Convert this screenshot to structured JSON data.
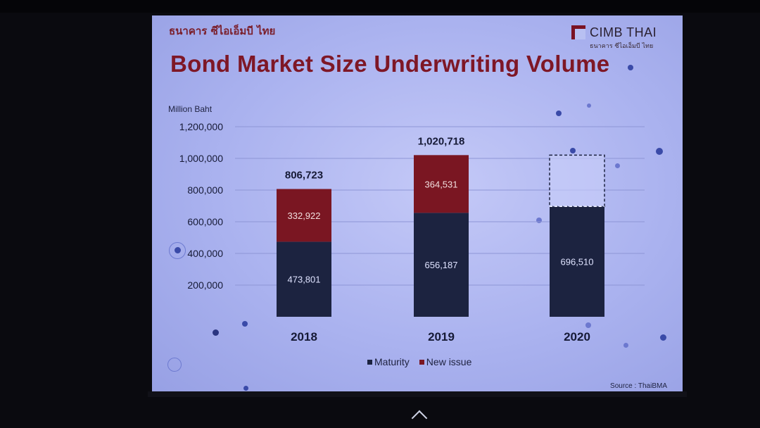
{
  "slide": {
    "bank_name_thai": "ธนาคาร ซีไอเอ็มบี ไทย",
    "logo_text": "CIMB THAI",
    "logo_sub": "ธนาคาร ซีไอเอ็มบี ไทย",
    "title": "Bond Market Size Underwriting Volume",
    "source": "Source : ThaiBMA"
  },
  "colors": {
    "maturity": "#1c2340",
    "new_issue": "#7a1622",
    "title": "#7e1726"
  },
  "chart_data": {
    "type": "bar",
    "stacked": true,
    "ylabel": "Million Baht",
    "ylim": [
      0,
      1200000
    ],
    "yticks": [
      200000,
      400000,
      600000,
      800000,
      1000000,
      1200000
    ],
    "ytick_labels": [
      "200,000",
      "400,000",
      "600,000",
      "800,000",
      "1,000,000",
      "1,200,000"
    ],
    "categories": [
      "2018",
      "2019",
      "2020"
    ],
    "series": [
      {
        "name": "Maturity",
        "values": [
          473801,
          656187,
          696510
        ],
        "labels": [
          "473,801",
          "656,187",
          "696,510"
        ]
      },
      {
        "name": "New issue",
        "values": [
          332922,
          364531,
          null
        ],
        "labels": [
          "332,922",
          "364,531",
          ""
        ]
      }
    ],
    "totals": [
      806723,
      1020718,
      null
    ],
    "total_labels": [
      "806,723",
      "1,020,718",
      ""
    ],
    "projected_outline_top": [
      null,
      null,
      1020718
    ],
    "legend": [
      "Maturity",
      "New issue"
    ]
  }
}
